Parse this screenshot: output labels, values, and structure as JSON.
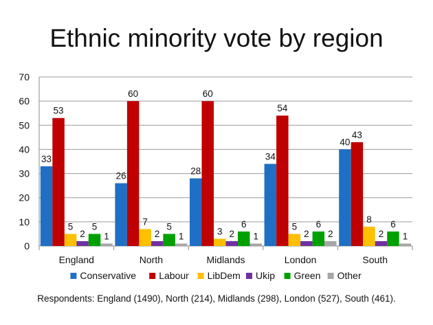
{
  "slide": {
    "title": "Ethnic minority vote by region",
    "note": "Respondents: England (1490), North (214), Midlands (298), London (527), South (461)."
  },
  "chart_data": {
    "type": "bar",
    "title": "Ethnic minority vote by region",
    "xlabel": "",
    "ylabel": "",
    "ylim": [
      0,
      70
    ],
    "yticks": [
      0,
      10,
      20,
      30,
      40,
      50,
      60,
      70
    ],
    "grid": true,
    "legend_position": "bottom",
    "categories": [
      "England",
      "North",
      "Midlands",
      "London",
      "South"
    ],
    "series": [
      {
        "name": "Conservative",
        "color": "#1F6FC5",
        "values": [
          33,
          26,
          28,
          34,
          40
        ]
      },
      {
        "name": "Labour",
        "color": "#C00000",
        "values": [
          53,
          60,
          60,
          54,
          43
        ]
      },
      {
        "name": "LibDem",
        "color": "#FFC000",
        "values": [
          5,
          7,
          3,
          5,
          8
        ]
      },
      {
        "name": "Ukip",
        "color": "#7030A0",
        "values": [
          2,
          2,
          2,
          2,
          2
        ]
      },
      {
        "name": "Green",
        "color": "#00A000",
        "values": [
          5,
          5,
          6,
          6,
          6
        ]
      },
      {
        "name": "Other",
        "color": "#A6A6A6",
        "values": [
          1,
          1,
          1,
          2,
          1
        ]
      }
    ]
  }
}
